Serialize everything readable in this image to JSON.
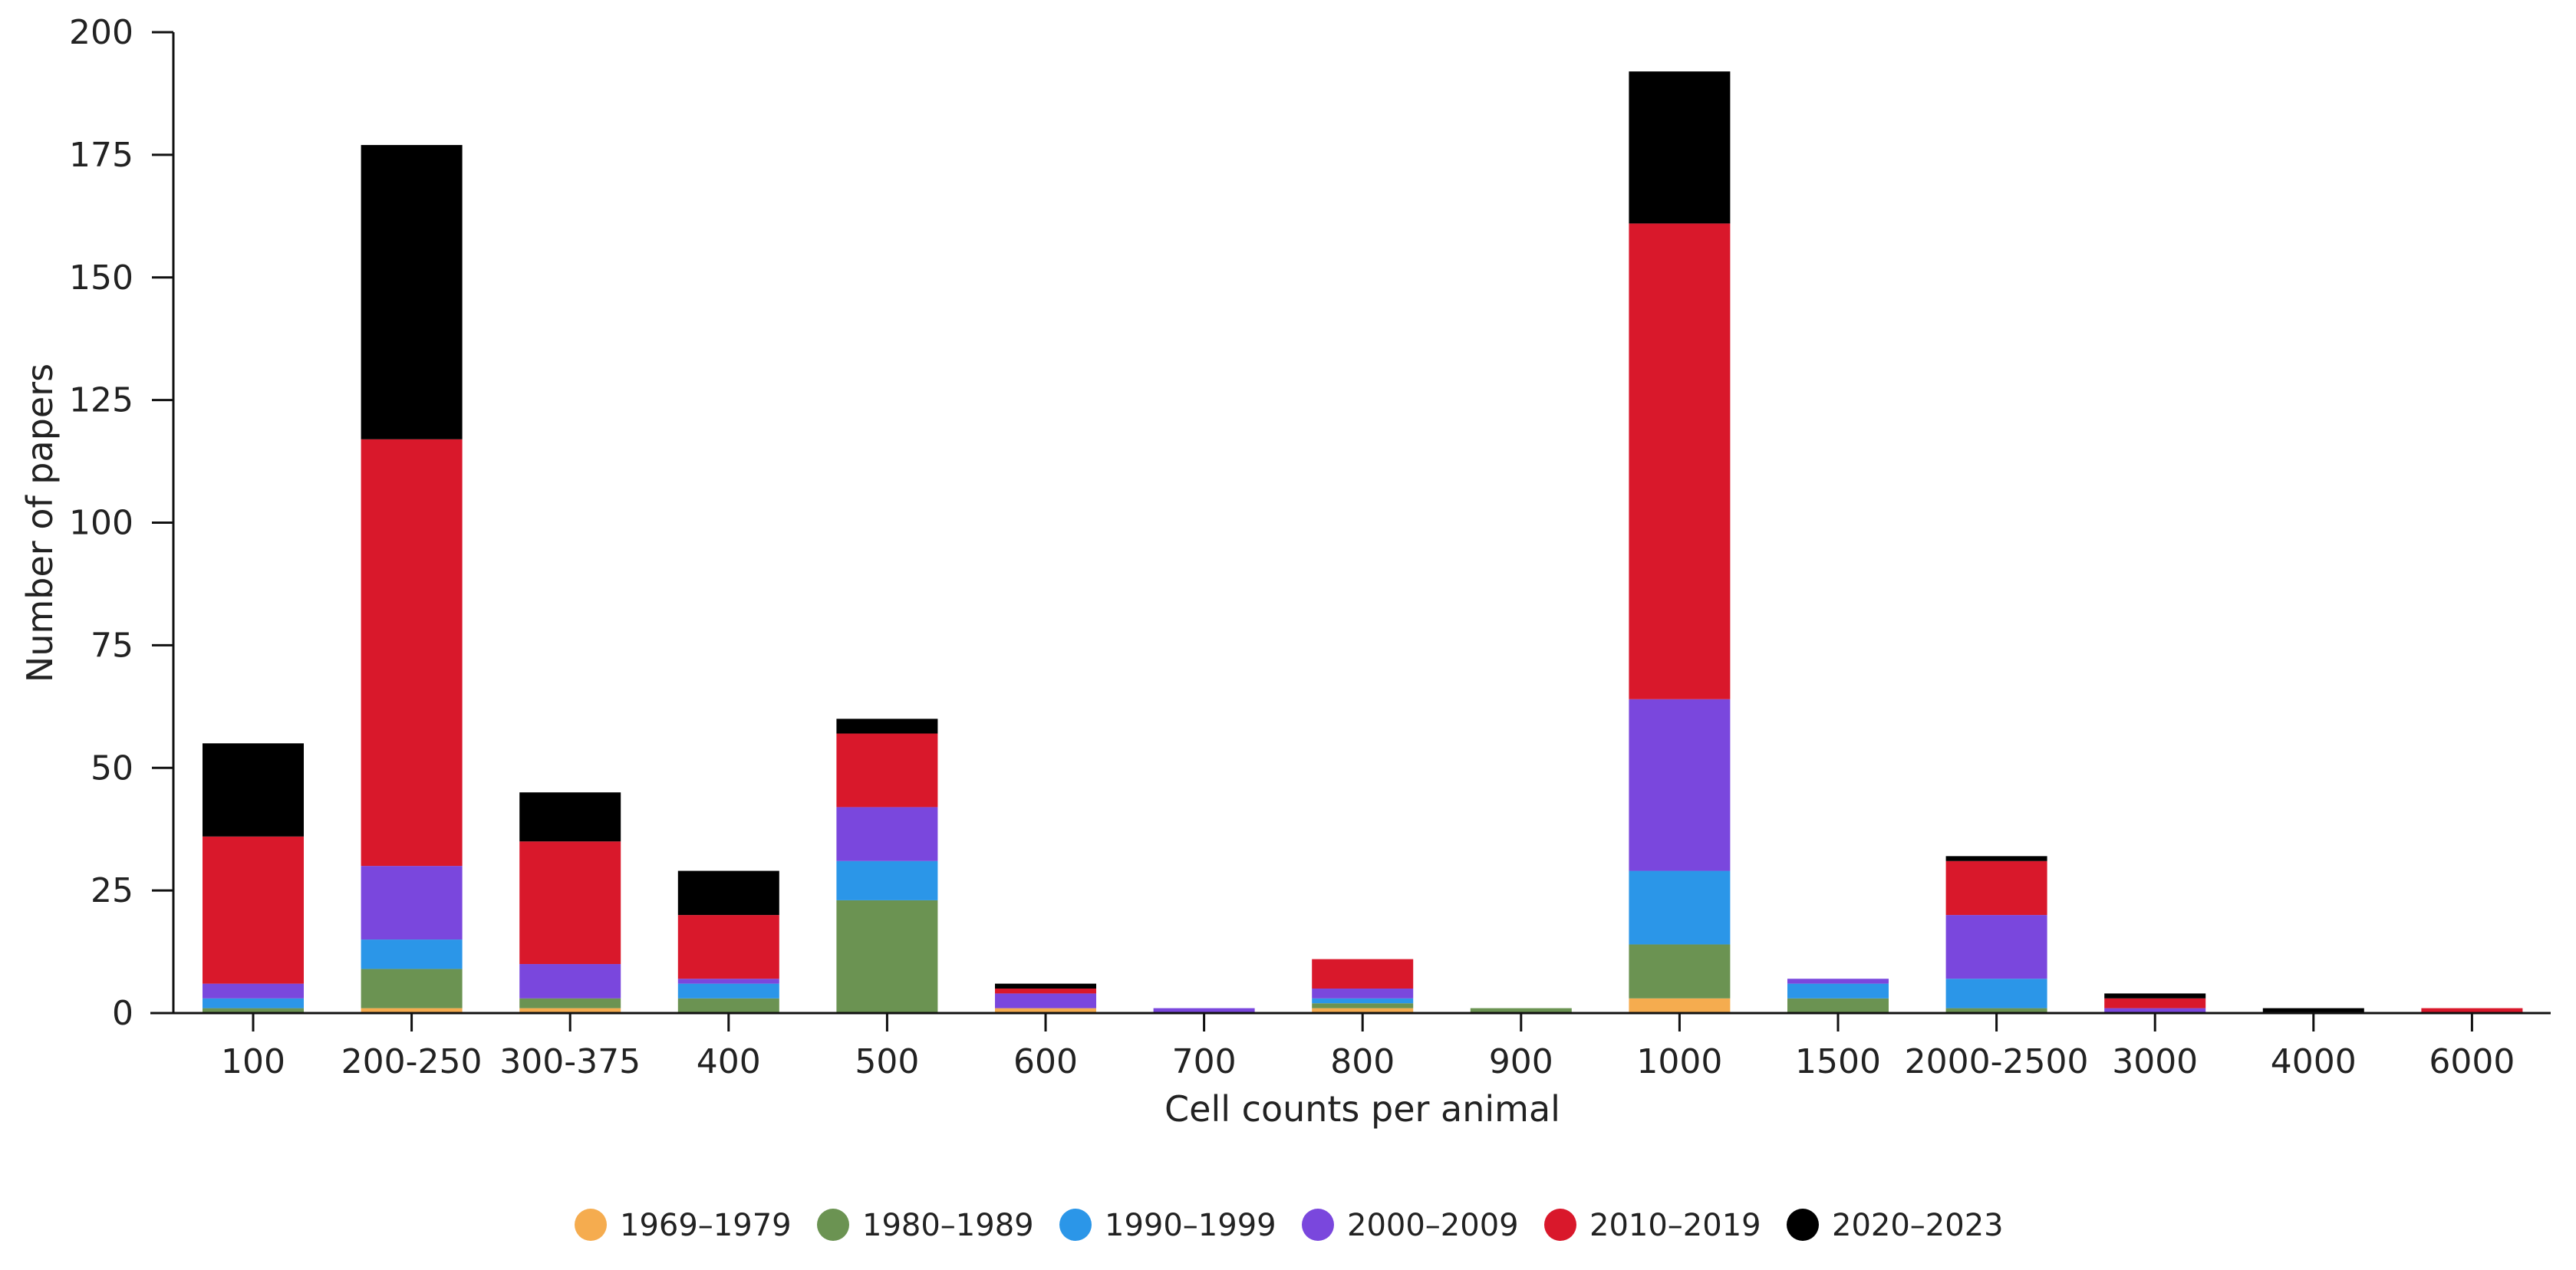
{
  "chart_data": {
    "type": "stacked-bar",
    "xlabel": "Cell counts per animal",
    "ylabel": "Number of papers",
    "ylim": [
      0,
      200
    ],
    "yticks": [
      "0",
      "25",
      "50",
      "75",
      "100",
      "125",
      "150",
      "175",
      "200"
    ],
    "categories": [
      "100",
      "200-250",
      "300-375",
      "400",
      "500",
      "600",
      "700",
      "800",
      "900",
      "1000",
      "1500",
      "2000-2500",
      "3000",
      "4000",
      "6000"
    ],
    "series": [
      {
        "name": "1969–1979",
        "color": "#f5ac4f",
        "values": [
          0,
          1,
          1,
          0,
          0,
          1,
          0,
          1,
          0,
          3,
          0,
          0,
          0,
          0,
          0
        ]
      },
      {
        "name": "1980–1989",
        "color": "#6b9352",
        "values": [
          1,
          8,
          2,
          3,
          23,
          0,
          0,
          1,
          1,
          11,
          3,
          1,
          0,
          0,
          0
        ]
      },
      {
        "name": "1990–1999",
        "color": "#2b96e8",
        "values": [
          2,
          6,
          0,
          3,
          8,
          0,
          0,
          1,
          0,
          15,
          3,
          6,
          0,
          0,
          0
        ]
      },
      {
        "name": "2000–2009",
        "color": "#7a47dd",
        "values": [
          3,
          15,
          7,
          1,
          11,
          3,
          1,
          2,
          0,
          35,
          1,
          13,
          1,
          0,
          0
        ]
      },
      {
        "name": "2010–2019",
        "color": "#d9182b",
        "values": [
          30,
          87,
          25,
          13,
          15,
          1,
          0,
          6,
          0,
          97,
          0,
          11,
          2,
          0,
          1
        ]
      },
      {
        "name": "2020–2023",
        "color": "#000000",
        "values": [
          19,
          60,
          10,
          9,
          3,
          1,
          0,
          0,
          0,
          31,
          0,
          1,
          1,
          1,
          0
        ]
      }
    ]
  }
}
